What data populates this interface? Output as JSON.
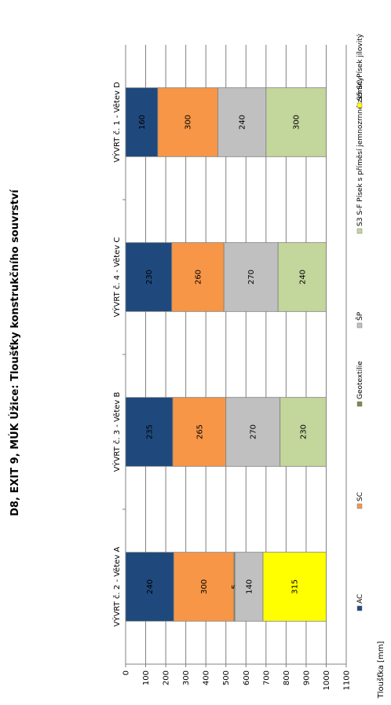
{
  "chart_data": {
    "type": "bar",
    "orientation": "stacked-horizontal",
    "title": "D8, EXIT 9, MÚK Úžice: Tloušťky konstrukčního souvrství",
    "ylabel": "Tloušťka [mm]",
    "xlabel": "",
    "value_axis_range": [
      0,
      1100
    ],
    "value_axis_ticks": [
      "0",
      "100",
      "200",
      "300",
      "400",
      "500",
      "600",
      "700",
      "800",
      "900",
      "1000",
      "1100"
    ],
    "grid": true,
    "legend_position": "bottom",
    "categories": [
      "VÝVRT č. 2 - Větev A",
      "VÝVRT č. 3 - Větev B",
      "VÝVRT č. 4 - Větev C",
      "VÝVRT č. 1 - Větev D"
    ],
    "series": [
      {
        "name": "AC",
        "color": "#1F497D",
        "values": [
          240,
          235,
          230,
          160
        ]
      },
      {
        "name": "SC",
        "color": "#F79646",
        "values": [
          300,
          265,
          260,
          300
        ]
      },
      {
        "name": "Geotextilie",
        "color": "#7A8A4E",
        "values": [
          5,
          null,
          null,
          null
        ]
      },
      {
        "name": "ŠP",
        "color": "#C0C0C0",
        "values": [
          140,
          270,
          270,
          240
        ]
      },
      {
        "name": "S3 S-F Písek s příměsí jemnozrnné zeminy",
        "color": "#C3D69B",
        "values": [
          null,
          230,
          240,
          300
        ]
      },
      {
        "name": "S5 SC Písek jílovitý",
        "color": "#FFFF00",
        "values": [
          315,
          null,
          null,
          null
        ]
      }
    ]
  }
}
